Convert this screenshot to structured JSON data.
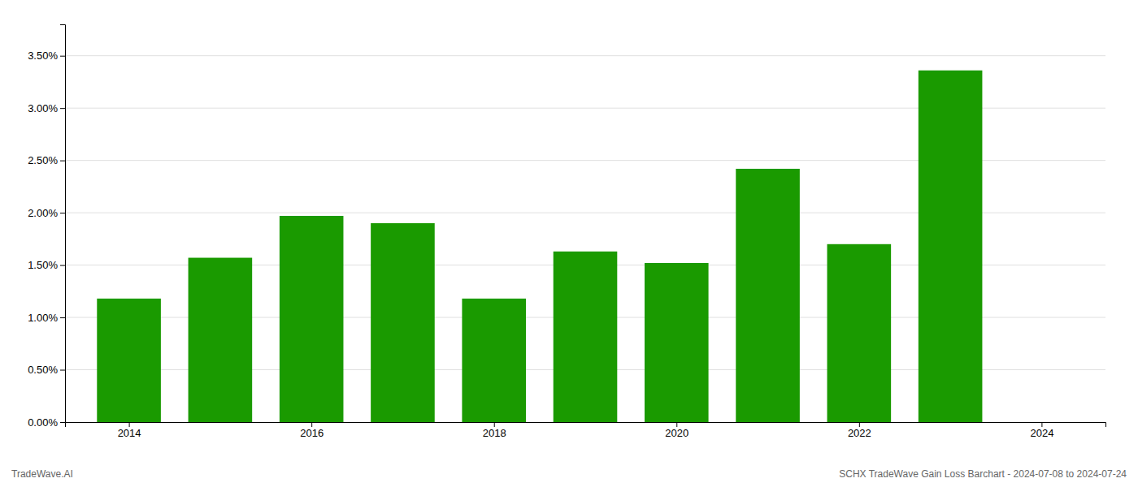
{
  "chart_data": {
    "type": "bar",
    "x": [
      2014,
      2015,
      2016,
      2017,
      2018,
      2019,
      2020,
      2021,
      2022,
      2023
    ],
    "values": [
      0.0118,
      0.0157,
      0.0197,
      0.019,
      0.0118,
      0.0163,
      0.0152,
      0.0242,
      0.017,
      0.0336
    ],
    "color": "#1a9a00",
    "xlim": [
      2013.3,
      2024.7
    ],
    "xticks": [
      2014,
      2016,
      2018,
      2020,
      2022,
      2024
    ],
    "ylim": [
      0,
      0.038
    ],
    "yticks": [
      {
        "value": 0.0,
        "label": "0.00%"
      },
      {
        "value": 0.005,
        "label": "0.50%"
      },
      {
        "value": 0.01,
        "label": "1.00%"
      },
      {
        "value": 0.015,
        "label": "1.50%"
      },
      {
        "value": 0.02,
        "label": "2.00%"
      },
      {
        "value": 0.025,
        "label": "2.50%"
      },
      {
        "value": 0.03,
        "label": "3.00%"
      },
      {
        "value": 0.035,
        "label": "3.50%"
      }
    ],
    "grid": true,
    "annotations": [
      "TradeWave.AI",
      "SCHX TradeWave Gain Loss Barchart - 2024-07-08 to 2024-07-24"
    ]
  }
}
